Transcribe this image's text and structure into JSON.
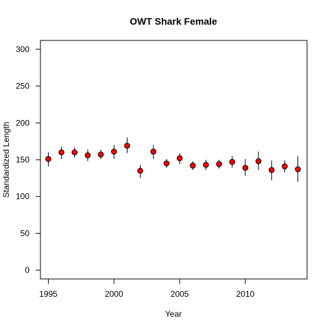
{
  "chart_data": {
    "type": "scatter",
    "title": "OWT Shark Female",
    "xlabel": "Year",
    "ylabel": "Standardized Length",
    "xlim": [
      1994.4,
      2014.7
    ],
    "ylim": [
      -12,
      312
    ],
    "xticks": [
      1995,
      2000,
      2005,
      2010
    ],
    "yticks": [
      0,
      50,
      100,
      150,
      200,
      250,
      300
    ],
    "grid": false,
    "legend": "none",
    "point_color": "#ff0000",
    "series": [
      {
        "x": [
          1995,
          1996,
          1997,
          1998,
          1999,
          2000,
          2001,
          2002,
          2003,
          2004,
          2005,
          2006,
          2007,
          2008,
          2009,
          2010,
          2011,
          2012,
          2013,
          2014
        ],
        "y": [
          151,
          160,
          160,
          156,
          157,
          161,
          169,
          135,
          161,
          145,
          152,
          142,
          143,
          144,
          147,
          139,
          148,
          136,
          141,
          137
        ],
        "lower": [
          141,
          151,
          153,
          148,
          151,
          151,
          159,
          125,
          151,
          139,
          144,
          136,
          136,
          138,
          139,
          128,
          136,
          122,
          133,
          120
        ],
        "upper": [
          160,
          168,
          167,
          164,
          164,
          170,
          180,
          143,
          170,
          151,
          159,
          148,
          150,
          150,
          155,
          151,
          161,
          149,
          149,
          155
        ]
      }
    ]
  }
}
